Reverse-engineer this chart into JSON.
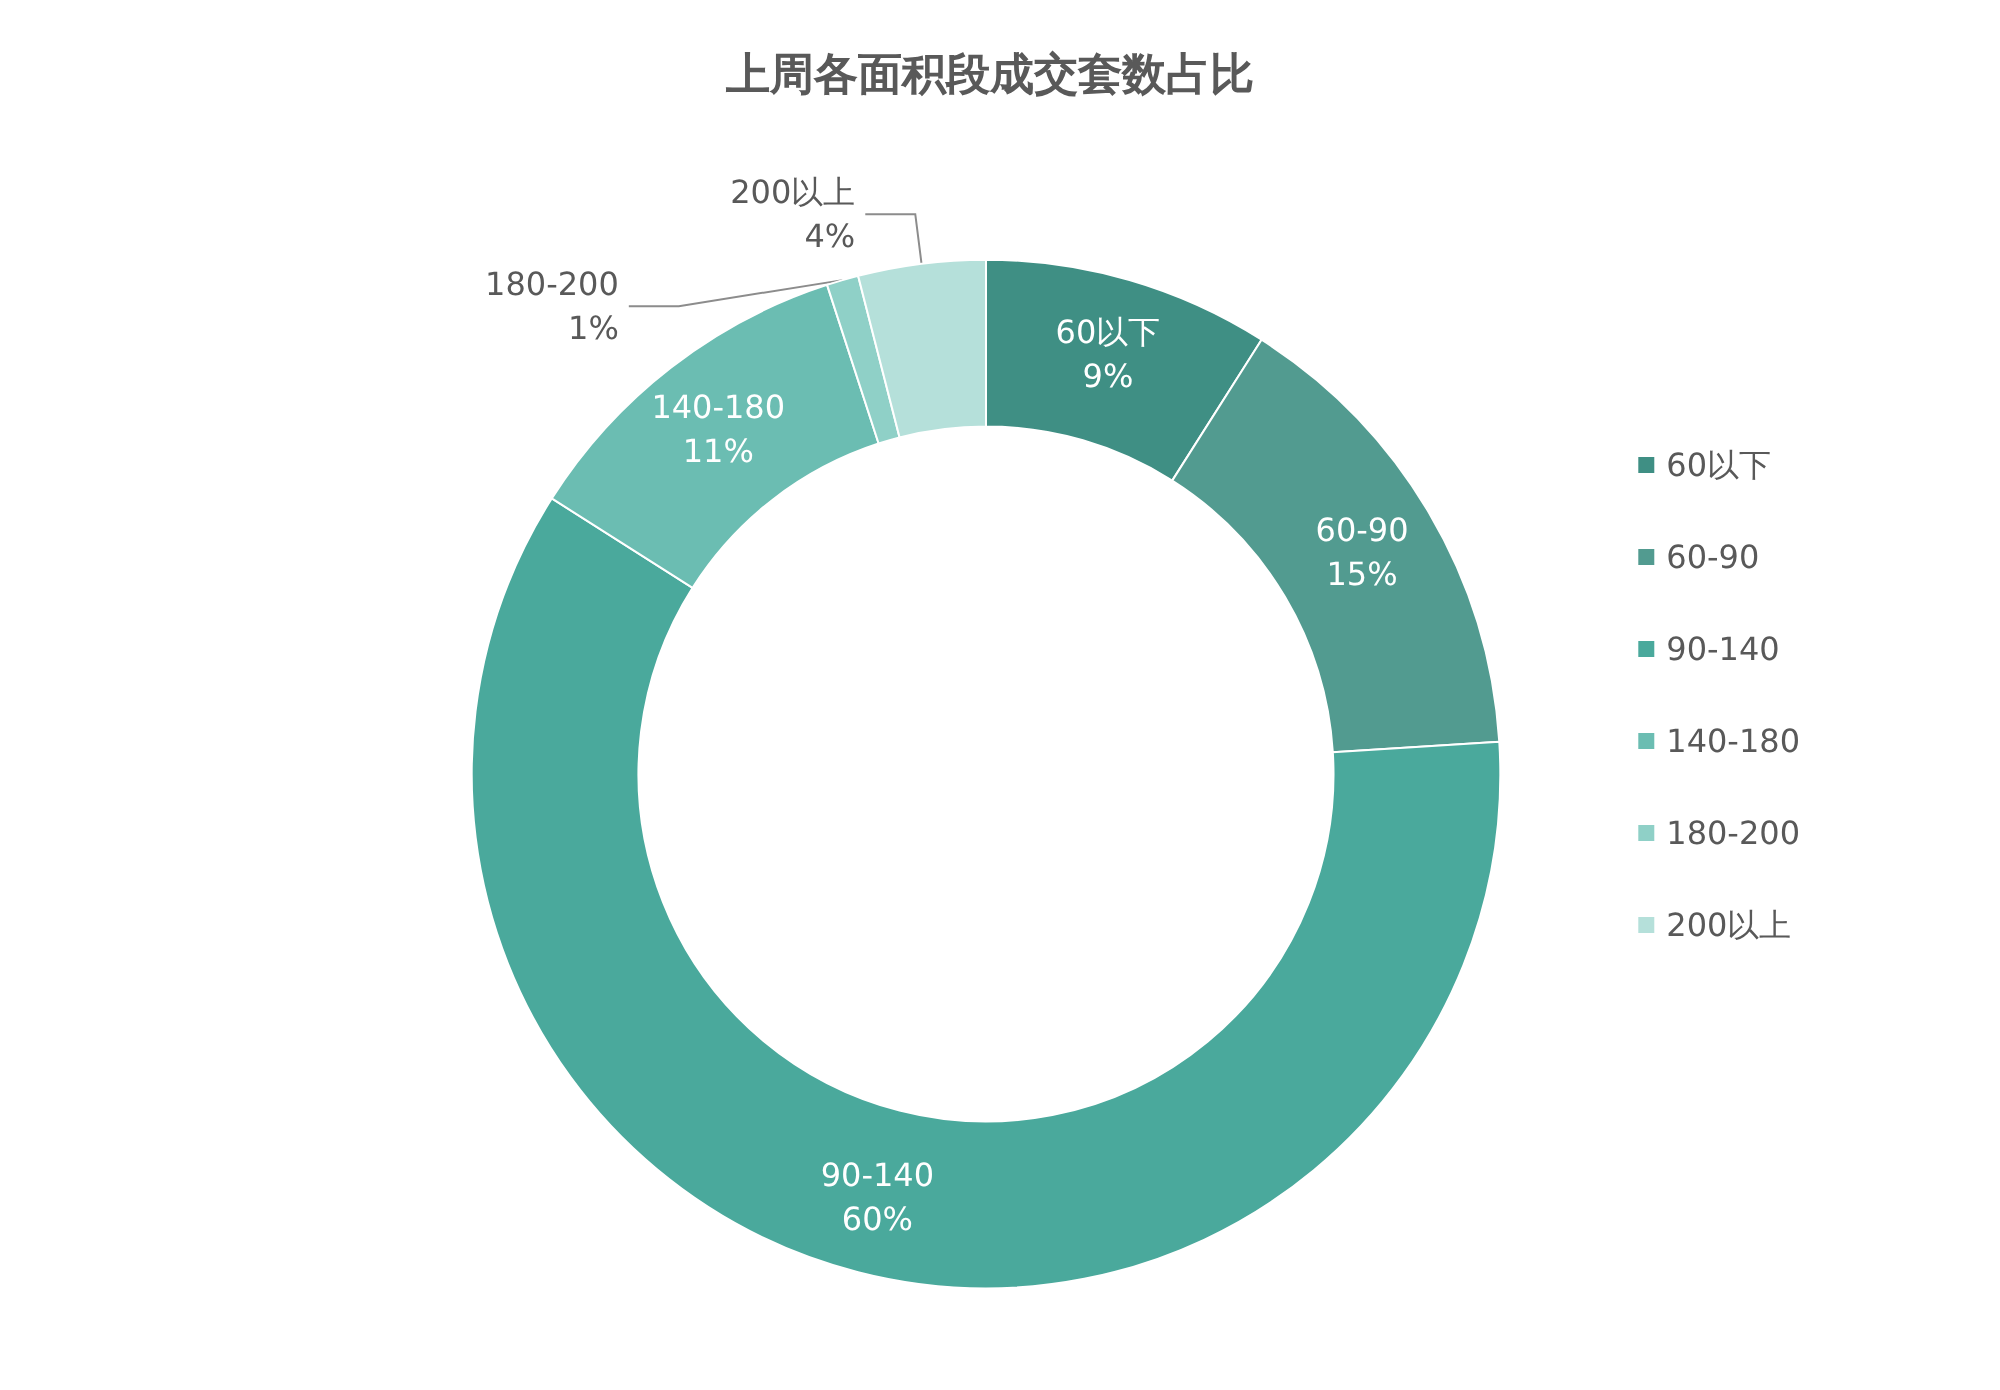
{
  "chart_data": {
    "type": "donut",
    "title": "上周各面积段成交套数占比",
    "categories": [
      "60以下",
      "60-90",
      "90-140",
      "140-180",
      "180-200",
      "200以上"
    ],
    "values": [
      9,
      15,
      60,
      11,
      1,
      4
    ],
    "value_labels": [
      "9%",
      "15%",
      "60%",
      "11%",
      "1%",
      "4%"
    ],
    "colors": [
      "#3f8f84",
      "#529b90",
      "#4aa99c",
      "#6bbdb2",
      "#8fd0c7",
      "#b5e0da"
    ],
    "legend": "right"
  }
}
